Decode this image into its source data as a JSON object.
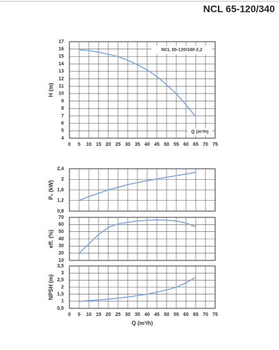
{
  "header": {
    "title": "NCL 65-120/340"
  },
  "chart_data": [
    {
      "type": "line",
      "ylabel": "H (m)",
      "annotation": "NCL 65-120/340-2,2",
      "xlabel": "Q (m³/h)",
      "x": [
        5,
        10,
        15,
        20,
        25,
        30,
        35,
        40,
        45,
        50,
        55,
        60,
        65
      ],
      "series": [
        {
          "color": "#7ba7e0",
          "values": [
            15.9,
            15.8,
            15.6,
            15.3,
            15.0,
            14.5,
            13.9,
            13.2,
            12.3,
            11.2,
            10.0,
            8.5,
            6.9
          ]
        }
      ],
      "xlim": [
        0,
        75
      ],
      "xticks": [
        0,
        5,
        10,
        15,
        20,
        25,
        30,
        35,
        40,
        45,
        50,
        55,
        60,
        65,
        70,
        75
      ],
      "ylim": [
        4,
        17
      ],
      "yticks": [
        4,
        5,
        6,
        7,
        8,
        9,
        10,
        11,
        12,
        13,
        14,
        15,
        16,
        17
      ],
      "grid": true
    },
    {
      "type": "line",
      "ylabel": "P₂ (kW)",
      "x": [
        5,
        10,
        20,
        30,
        40,
        50,
        60,
        65
      ],
      "series": [
        {
          "color": "#7ba7e0",
          "values": [
            1.2,
            1.35,
            1.6,
            1.8,
            1.95,
            2.08,
            2.2,
            2.27
          ]
        }
      ],
      "xlim": [
        0,
        75
      ],
      "ylim": [
        0.8,
        2.4
      ],
      "yticks": [
        {
          "value": 0.8,
          "label": "0,8"
        },
        {
          "value": 1.2,
          "label": "1,2"
        },
        {
          "value": 1.6,
          "label": "1,6"
        },
        2,
        {
          "value": 2.4,
          "label": "2,4"
        }
      ],
      "grid": true
    },
    {
      "type": "line",
      "ylabel": "eff. (%)",
      "x": [
        5,
        10,
        15,
        20,
        25,
        30,
        35,
        40,
        45,
        50,
        55,
        60,
        65
      ],
      "series": [
        {
          "color": "#7ba7e0",
          "values": [
            20,
            33,
            46,
            56,
            61,
            63,
            65,
            66,
            66.5,
            66,
            65,
            62,
            57
          ]
        }
      ],
      "xlim": [
        0,
        75
      ],
      "ylim": [
        10,
        70
      ],
      "yticks": [
        10,
        20,
        30,
        40,
        50,
        60,
        70
      ],
      "grid": true
    },
    {
      "type": "line",
      "ylabel": "NPSH (m)",
      "xlabel": "Q (m³/h)",
      "x": [
        5,
        10,
        20,
        30,
        40,
        50,
        55,
        60,
        65
      ],
      "series": [
        {
          "color": "#7ba7e0",
          "values": [
            1.0,
            1.05,
            1.15,
            1.3,
            1.5,
            1.8,
            2.0,
            2.3,
            2.7
          ]
        }
      ],
      "xlim": [
        0,
        75
      ],
      "xticks": [
        0,
        5,
        10,
        15,
        20,
        25,
        30,
        35,
        40,
        45,
        50,
        55,
        60,
        65,
        70,
        75
      ],
      "ylim": [
        0.5,
        3.5
      ],
      "yticks": [
        {
          "value": 0.5,
          "label": "0,5"
        },
        1,
        {
          "value": 1.5,
          "label": "1,5"
        },
        2,
        {
          "value": 2.5,
          "label": "2,5"
        },
        3,
        {
          "value": 3.5,
          "label": "3,5"
        }
      ],
      "grid": true
    }
  ]
}
